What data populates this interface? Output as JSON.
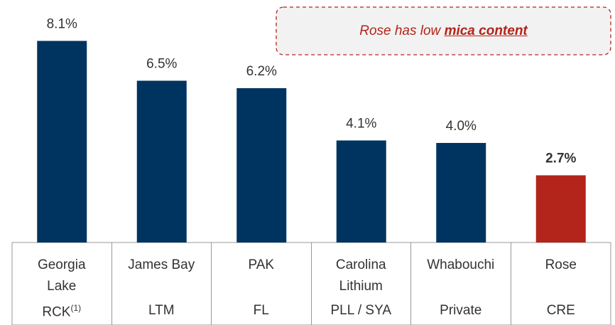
{
  "chart_data": {
    "type": "bar",
    "annotation": {
      "text": "Rose has low ",
      "emphasis": "mica content"
    },
    "categories": [
      "Georgia Lake",
      "James Bay",
      "PAK",
      "Carolina Lithium",
      "Whabouchi",
      "Rose"
    ],
    "tickers": [
      "RCK",
      "LTM",
      "FL",
      "PLL / SYA",
      "Private",
      "CRE"
    ],
    "ticker_notes": [
      "(1)",
      null,
      null,
      null,
      null,
      null
    ],
    "values": [
      8.1,
      6.5,
      6.2,
      4.1,
      4.0,
      2.7
    ],
    "value_labels": [
      "8.1%",
      "6.5%",
      "6.2%",
      "4.1%",
      "4.0%",
      "2.7%"
    ],
    "label_bold": [
      false,
      false,
      false,
      false,
      false,
      true
    ],
    "colors": [
      "#003460",
      "#003460",
      "#003460",
      "#003460",
      "#003460",
      "#b3241a"
    ]
  }
}
